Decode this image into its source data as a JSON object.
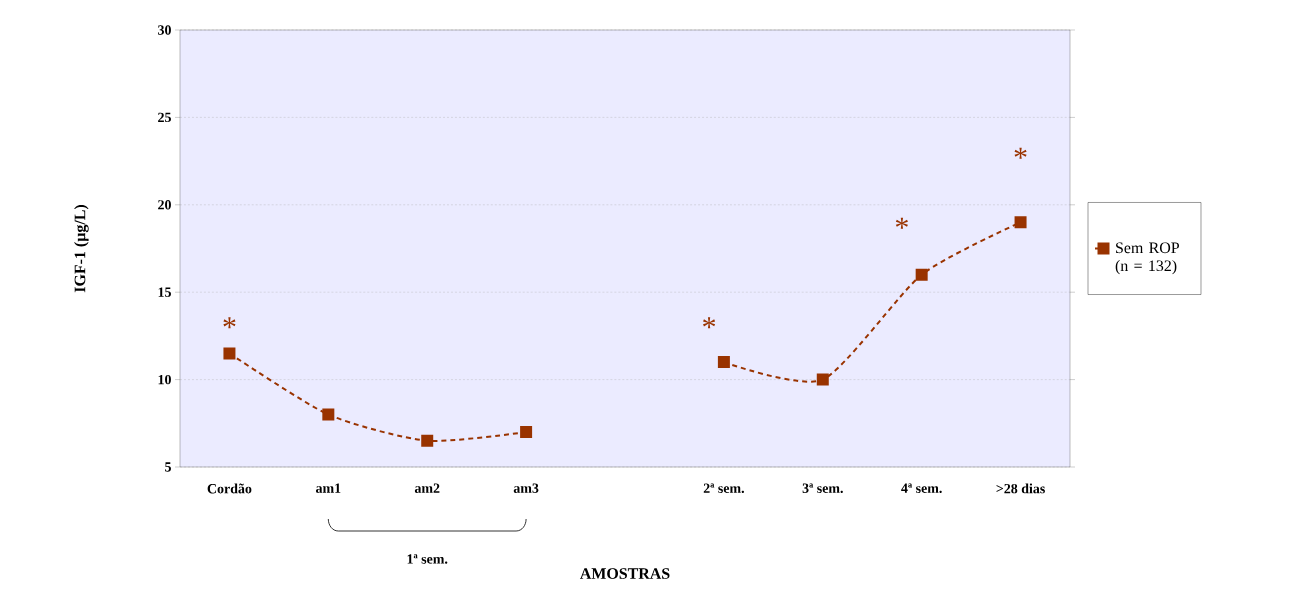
{
  "chart_data": {
    "type": "line",
    "xlabel": "AMOSTRAS",
    "ylabel": "IGF-1 (µg/L)",
    "categories": [
      "Cordão",
      "am1",
      "am2",
      "am3",
      null,
      "2ª sem.",
      "3ª sem.",
      "4ª sem.",
      ">28 dias"
    ],
    "series": [
      {
        "name": "Sem ROP (n = 132)",
        "color": "#993300",
        "values": [
          11.5,
          8,
          6.5,
          7,
          null,
          11,
          10,
          16,
          19
        ]
      }
    ],
    "ylim": [
      5,
      30
    ],
    "yticks": [
      5,
      10,
      15,
      20,
      25,
      30
    ],
    "grid": "y",
    "legend": "right",
    "marker": "square",
    "line_style": "dashed",
    "annotations": [
      "*",
      "*",
      "*",
      "*",
      "1ª sem."
    ]
  }
}
